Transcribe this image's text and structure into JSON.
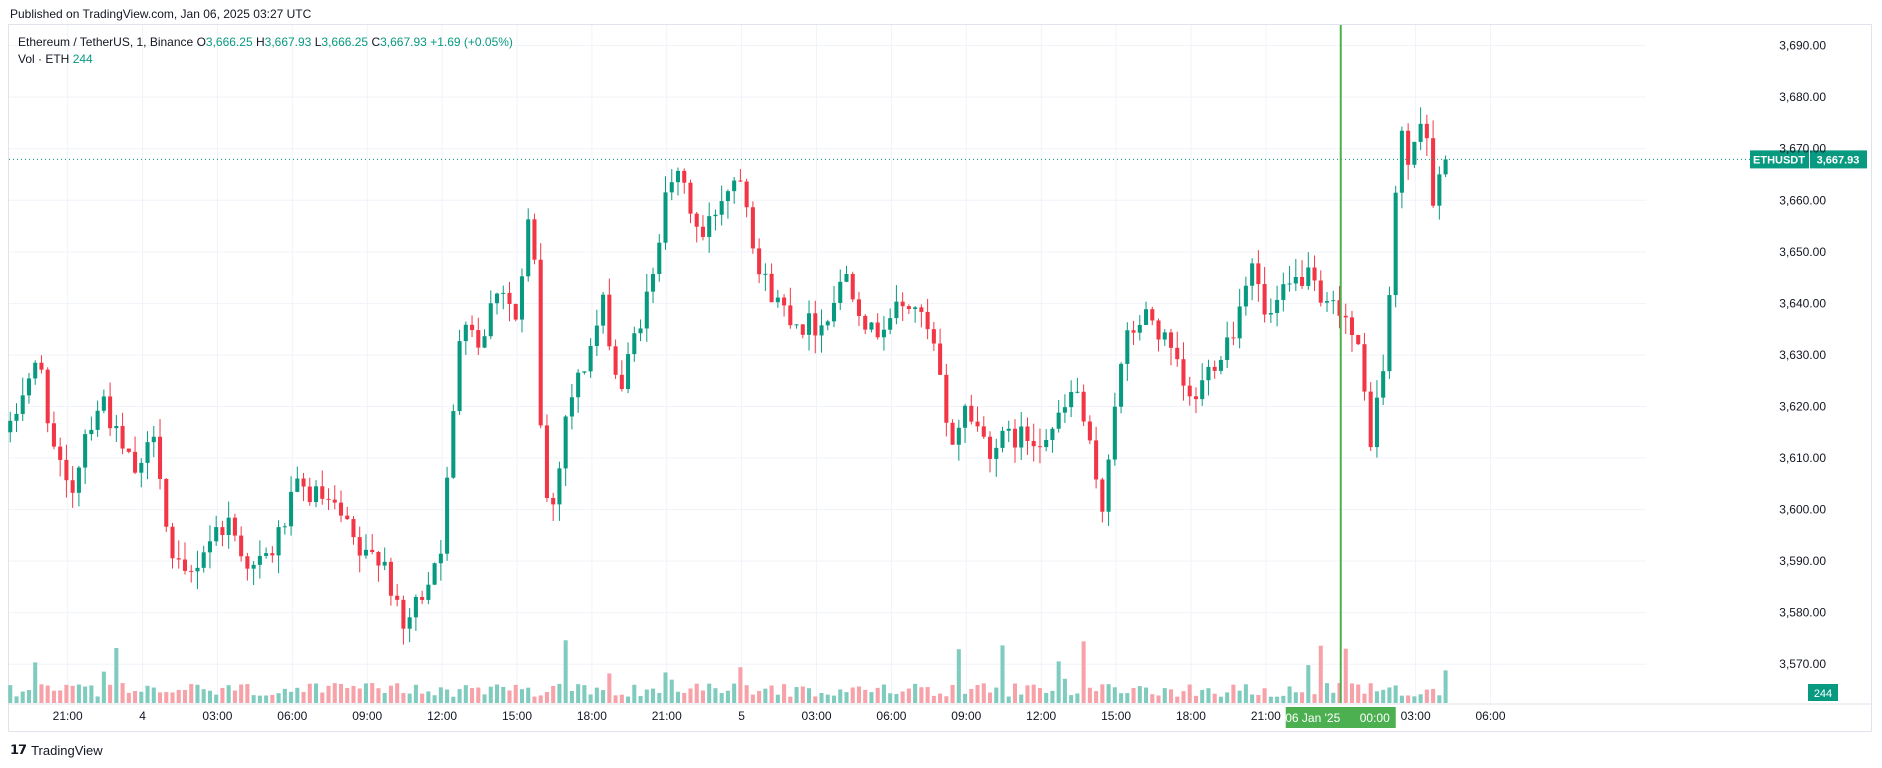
{
  "header": {
    "published_text": "Published on TradingView.com, Jan 06, 2025 03:27 UTC"
  },
  "legend": {
    "symbol_text": "Ethereum / TetherUS, 1, Binance",
    "o_label": "O",
    "o_value": "3,666.25",
    "h_label": "H",
    "h_value": "3,667.93",
    "l_label": "L",
    "l_value": "3,666.25",
    "c_label": "C",
    "c_value": "3,667.93",
    "change": "+1.69 (+0.05%)",
    "vol_label": "Vol · ETH",
    "vol_value": "244"
  },
  "footer": {
    "logo_glyph": "𝟭𝟳",
    "brand": "TradingView"
  },
  "colors": {
    "up": "#089981",
    "down": "#f23645",
    "vol_up": "#7fccbf",
    "vol_down": "#f7a1a8",
    "crosshair": "#4caf50",
    "grid": "#f0f3fa",
    "axis_text": "#131722"
  },
  "chart_data": {
    "type": "candlestick",
    "symbol": "ETHUSDT",
    "interval": "1 minute",
    "y_axis": {
      "ticks": [
        3570,
        3580,
        3590,
        3600,
        3610,
        3620,
        3630,
        3640,
        3650,
        3660,
        3670,
        3680,
        3690
      ],
      "tick_labels": [
        "3,570.00",
        "3,580.00",
        "3,590.00",
        "3,600.00",
        "3,610.00",
        "3,620.00",
        "3,630.00",
        "3,640.00",
        "3,650.00",
        "3,660.00",
        "3,670.00",
        "3,680.00",
        "3,690.00"
      ],
      "ylim": [
        3565,
        3694
      ],
      "position": "right"
    },
    "x_axis": {
      "tick_labels": [
        "21:00",
        "4",
        "03:00",
        "06:00",
        "09:00",
        "12:00",
        "15:00",
        "18:00",
        "21:00",
        "5",
        "03:00",
        "06:00",
        "09:00",
        "12:00",
        "15:00",
        "18:00",
        "21:00",
        "03:00",
        "06:00"
      ],
      "tick_hours": [
        3,
        6,
        9,
        12,
        15,
        18,
        21,
        24,
        27,
        30,
        33,
        36,
        39,
        42,
        45,
        48,
        51,
        57,
        60
      ],
      "range_hours": [
        0.65,
        60.5
      ],
      "crosshair_label_date": "06 Jan '25",
      "crosshair_label_time": "00:00",
      "crosshair_hour": 54
    },
    "price_keypoints": [
      {
        "h": 0.7,
        "p": 3615
      },
      {
        "h": 1.3,
        "p": 3625
      },
      {
        "h": 1.9,
        "p": 3628
      },
      {
        "h": 2.5,
        "p": 3610
      },
      {
        "h": 3.1,
        "p": 3602
      },
      {
        "h": 3.7,
        "p": 3615
      },
      {
        "h": 4.4,
        "p": 3622
      },
      {
        "h": 5.1,
        "p": 3612
      },
      {
        "h": 5.9,
        "p": 3606
      },
      {
        "h": 6.5,
        "p": 3617
      },
      {
        "h": 7.1,
        "p": 3590
      },
      {
        "h": 7.8,
        "p": 3586
      },
      {
        "h": 8.6,
        "p": 3594
      },
      {
        "h": 9.4,
        "p": 3598
      },
      {
        "h": 10.4,
        "p": 3588
      },
      {
        "h": 11.2,
        "p": 3592
      },
      {
        "h": 12.2,
        "p": 3604
      },
      {
        "h": 13.2,
        "p": 3602
      },
      {
        "h": 14.0,
        "p": 3598
      },
      {
        "h": 14.8,
        "p": 3590
      },
      {
        "h": 15.6,
        "p": 3592
      },
      {
        "h": 16.4,
        "p": 3576
      },
      {
        "h": 17.2,
        "p": 3584
      },
      {
        "h": 18.0,
        "p": 3594
      },
      {
        "h": 18.4,
        "p": 3615
      },
      {
        "h": 18.8,
        "p": 3640
      },
      {
        "h": 19.5,
        "p": 3632
      },
      {
        "h": 20.3,
        "p": 3645
      },
      {
        "h": 21.0,
        "p": 3636
      },
      {
        "h": 21.6,
        "p": 3661
      },
      {
        "h": 21.9,
        "p": 3620
      },
      {
        "h": 22.3,
        "p": 3596
      },
      {
        "h": 23.0,
        "p": 3620
      },
      {
        "h": 23.7,
        "p": 3628
      },
      {
        "h": 24.5,
        "p": 3640
      },
      {
        "h": 25.1,
        "p": 3622
      },
      {
        "h": 25.8,
        "p": 3635
      },
      {
        "h": 26.5,
        "p": 3645
      },
      {
        "h": 27.0,
        "p": 3666
      },
      {
        "h": 27.7,
        "p": 3662
      },
      {
        "h": 28.4,
        "p": 3652
      },
      {
        "h": 29.3,
        "p": 3662
      },
      {
        "h": 30.0,
        "p": 3666
      },
      {
        "h": 30.7,
        "p": 3646
      },
      {
        "h": 31.5,
        "p": 3640
      },
      {
        "h": 32.4,
        "p": 3636
      },
      {
        "h": 33.2,
        "p": 3636
      },
      {
        "h": 34.2,
        "p": 3646
      },
      {
        "h": 35.2,
        "p": 3634
      },
      {
        "h": 36.0,
        "p": 3638
      },
      {
        "h": 36.9,
        "p": 3640
      },
      {
        "h": 37.8,
        "p": 3630
      },
      {
        "h": 38.3,
        "p": 3612
      },
      {
        "h": 39.0,
        "p": 3620
      },
      {
        "h": 39.9,
        "p": 3612
      },
      {
        "h": 40.8,
        "p": 3614
      },
      {
        "h": 41.8,
        "p": 3614
      },
      {
        "h": 42.6,
        "p": 3616
      },
      {
        "h": 43.4,
        "p": 3624
      },
      {
        "h": 44.0,
        "p": 3610
      },
      {
        "h": 44.4,
        "p": 3598
      },
      {
        "h": 44.9,
        "p": 3620
      },
      {
        "h": 45.5,
        "p": 3634
      },
      {
        "h": 46.3,
        "p": 3638
      },
      {
        "h": 47.2,
        "p": 3630
      },
      {
        "h": 48.0,
        "p": 3620
      },
      {
        "h": 48.8,
        "p": 3628
      },
      {
        "h": 49.8,
        "p": 3636
      },
      {
        "h": 50.4,
        "p": 3650
      },
      {
        "h": 51.0,
        "p": 3636
      },
      {
        "h": 51.8,
        "p": 3642
      },
      {
        "h": 52.6,
        "p": 3646
      },
      {
        "h": 53.3,
        "p": 3638
      },
      {
        "h": 54.0,
        "p": 3640
      },
      {
        "h": 54.7,
        "p": 3630
      },
      {
        "h": 55.2,
        "p": 3614
      },
      {
        "h": 55.8,
        "p": 3630
      },
      {
        "h": 56.4,
        "p": 3675
      },
      {
        "h": 56.8,
        "p": 3665
      },
      {
        "h": 57.3,
        "p": 3680
      },
      {
        "h": 57.7,
        "p": 3660
      },
      {
        "h": 58.1,
        "p": 3666
      },
      {
        "h": 58.35,
        "p": 3667.93
      }
    ],
    "last_price": 3667.93,
    "last_price_label": "3,667.93",
    "last_price_symbol_label": "ETHUSDT",
    "volume_last_label": "244"
  }
}
